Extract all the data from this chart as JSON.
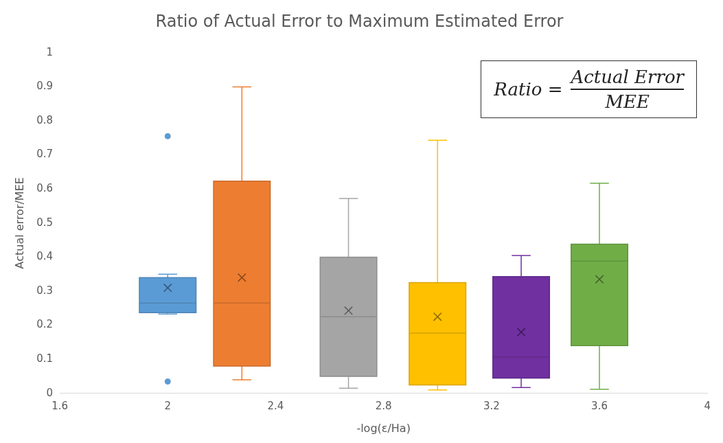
{
  "chart_data": {
    "type": "box",
    "title": "Ratio of Actual Error to Maximum Estimated Error",
    "xlabel": "-log(ε/Ha)",
    "ylabel": "Actual error/MEE",
    "x": [
      2,
      2.275,
      2.67,
      3,
      3.31,
      3.6
    ],
    "colors": [
      "#5b9bd5",
      "#ed7d31",
      "#a5a5a5",
      "#ffc000",
      "#7030a0",
      "#70ad47"
    ],
    "boxes": [
      {
        "low": 0.233,
        "q1": 0.237,
        "median": 0.265,
        "q3": 0.34,
        "high": 0.35,
        "mean": 0.31,
        "outliers": [
          0.755,
          0.035
        ]
      },
      {
        "low": 0.04,
        "q1": 0.08,
        "median": 0.265,
        "q3": 0.623,
        "high": 0.9,
        "mean": 0.34
      },
      {
        "low": 0.015,
        "q1": 0.05,
        "median": 0.225,
        "q3": 0.4,
        "high": 0.572,
        "mean": 0.243
      },
      {
        "low": 0.01,
        "q1": 0.025,
        "median": 0.177,
        "q3": 0.325,
        "high": 0.743,
        "mean": 0.225
      },
      {
        "low": 0.017,
        "q1": 0.045,
        "median": 0.107,
        "q3": 0.343,
        "high": 0.405,
        "mean": 0.18
      },
      {
        "low": 0.012,
        "q1": 0.14,
        "median": 0.388,
        "q3": 0.438,
        "high": 0.617,
        "mean": 0.335
      }
    ],
    "xlim": [
      1.6,
      4
    ],
    "xticks": [
      1.6,
      2,
      2.4,
      2.8,
      3.2,
      3.6,
      4
    ],
    "ylim": [
      0,
      1
    ],
    "yticks": [
      0,
      0.1,
      0.2,
      0.3,
      0.4,
      0.5,
      0.6,
      0.7,
      0.8,
      0.9,
      1
    ],
    "grid": false,
    "legend": false,
    "marker": "cross",
    "annotations": [
      "Ratio =",
      "Actual Error",
      "MEE"
    ]
  }
}
